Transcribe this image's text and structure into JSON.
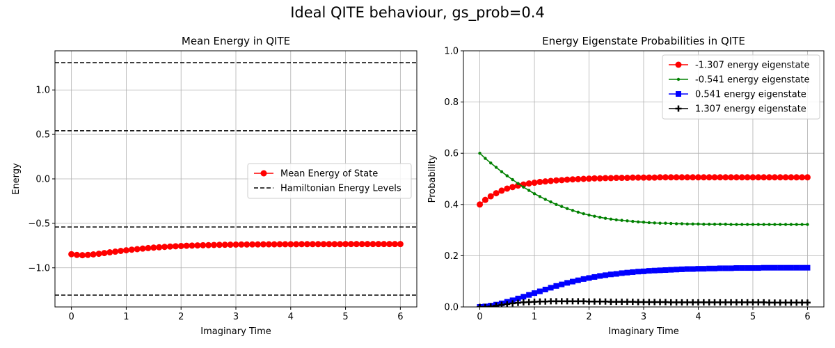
{
  "figure": {
    "suptitle": "Ideal QITE behaviour, gs_prob=0.4"
  },
  "chart_data": [
    {
      "type": "line",
      "title": "Mean Energy in QITE",
      "xlabel": "Imaginary Time",
      "ylabel": "Energy",
      "xlim": [
        -0.3,
        6.3
      ],
      "ylim": [
        -1.44,
        1.44
      ],
      "xticks": [
        0,
        1,
        2,
        3,
        4,
        5,
        6
      ],
      "xtick_labels": [
        "0",
        "1",
        "2",
        "3",
        "4",
        "5",
        "6"
      ],
      "yticks": [
        -1.0,
        -0.5,
        0.0,
        0.5,
        1.0
      ],
      "ytick_labels": [
        "−1.0",
        "−0.5",
        "0.0",
        "0.5",
        "1.0"
      ],
      "grid": true,
      "legend_position": "center-right",
      "legend": [
        "Mean Energy of State",
        "Hamiltonian Energy Levels"
      ],
      "series": [
        {
          "name": "Mean Energy of State",
          "color": "#ff0000",
          "marker": "circle",
          "x": [
            0.0,
            0.1,
            0.2,
            0.3,
            0.4,
            0.5,
            0.6,
            0.7,
            0.8,
            0.9,
            1.0,
            1.1,
            1.2,
            1.3,
            1.4,
            1.5,
            1.6,
            1.7,
            1.8,
            1.9,
            2.0,
            2.1,
            2.2,
            2.3,
            2.4,
            2.5,
            2.6,
            2.7,
            2.8,
            2.9,
            3.0,
            3.1,
            3.2,
            3.3,
            3.4,
            3.5,
            3.6,
            3.7,
            3.8,
            3.9,
            4.0,
            4.1,
            4.2,
            4.3,
            4.4,
            4.5,
            4.6,
            4.7,
            4.8,
            4.9,
            5.0,
            5.1,
            5.2,
            5.3,
            5.4,
            5.5,
            5.6,
            5.7,
            5.8,
            5.9,
            6.0
          ],
          "y": [
            -0.847,
            -0.855,
            -0.858,
            -0.855,
            -0.849,
            -0.842,
            -0.834,
            -0.826,
            -0.818,
            -0.81,
            -0.803,
            -0.796,
            -0.79,
            -0.784,
            -0.778,
            -0.773,
            -0.769,
            -0.765,
            -0.761,
            -0.758,
            -0.755,
            -0.752,
            -0.75,
            -0.748,
            -0.746,
            -0.745,
            -0.743,
            -0.742,
            -0.741,
            -0.74,
            -0.739,
            -0.738,
            -0.738,
            -0.737,
            -0.737,
            -0.736,
            -0.736,
            -0.736,
            -0.735,
            -0.735,
            -0.735,
            -0.735,
            -0.734,
            -0.734,
            -0.734,
            -0.734,
            -0.734,
            -0.734,
            -0.734,
            -0.734,
            -0.733,
            -0.733,
            -0.733,
            -0.733,
            -0.733,
            -0.733,
            -0.733,
            -0.733,
            -0.733,
            -0.733,
            -0.733
          ]
        }
      ],
      "hlines": {
        "name": "Hamiltonian Energy Levels",
        "color": "#000000",
        "style": "dashed",
        "values": [
          -1.307,
          -0.541,
          0.541,
          1.307
        ]
      }
    },
    {
      "type": "line",
      "title": "Energy Eigenstate Probabilities in QITE",
      "xlabel": "Imaginary Time",
      "ylabel": "Probability",
      "xlim": [
        -0.3,
        6.3
      ],
      "ylim": [
        0.0,
        1.0
      ],
      "xticks": [
        0,
        1,
        2,
        3,
        4,
        5,
        6
      ],
      "xtick_labels": [
        "0",
        "1",
        "2",
        "3",
        "4",
        "5",
        "6"
      ],
      "yticks": [
        0.0,
        0.2,
        0.4,
        0.6,
        0.8,
        1.0
      ],
      "ytick_labels": [
        "0.0",
        "0.2",
        "0.4",
        "0.6",
        "0.8",
        "1.0"
      ],
      "grid": true,
      "legend_position": "top-right",
      "legend": [
        "-1.307 energy eigenstate",
        "-0.541 energy eigenstate",
        "0.541 energy eigenstate",
        "1.307 energy eigenstate"
      ],
      "x": [
        0.0,
        0.1,
        0.2,
        0.3,
        0.4,
        0.5,
        0.6,
        0.7,
        0.8,
        0.9,
        1.0,
        1.1,
        1.2,
        1.3,
        1.4,
        1.5,
        1.6,
        1.7,
        1.8,
        1.9,
        2.0,
        2.1,
        2.2,
        2.3,
        2.4,
        2.5,
        2.6,
        2.7,
        2.8,
        2.9,
        3.0,
        3.1,
        3.2,
        3.3,
        3.4,
        3.5,
        3.6,
        3.7,
        3.8,
        3.9,
        4.0,
        4.1,
        4.2,
        4.3,
        4.4,
        4.5,
        4.6,
        4.7,
        4.8,
        4.9,
        5.0,
        5.1,
        5.2,
        5.3,
        5.4,
        5.5,
        5.6,
        5.7,
        5.8,
        5.9,
        6.0
      ],
      "series": [
        {
          "name": "-1.307 energy eigenstate",
          "color": "#ff0000",
          "marker": "circle",
          "values": [
            0.4,
            0.418,
            0.432,
            0.444,
            0.454,
            0.462,
            0.468,
            0.474,
            0.478,
            0.482,
            0.485,
            0.488,
            0.49,
            0.492,
            0.494,
            0.495,
            0.497,
            0.498,
            0.499,
            0.5,
            0.501,
            0.502,
            0.502,
            0.503,
            0.503,
            0.504,
            0.504,
            0.504,
            0.505,
            0.505,
            0.505,
            0.505,
            0.505,
            0.506,
            0.506,
            0.506,
            0.506,
            0.506,
            0.506,
            0.506,
            0.506,
            0.506,
            0.506,
            0.506,
            0.506,
            0.506,
            0.506,
            0.506,
            0.506,
            0.506,
            0.506,
            0.506,
            0.506,
            0.506,
            0.506,
            0.506,
            0.506,
            0.506,
            0.506,
            0.506,
            0.506
          ]
        },
        {
          "name": "-0.541 energy eigenstate",
          "color": "#008000",
          "marker": "dot",
          "values": [
            0.6,
            0.58,
            0.562,
            0.545,
            0.528,
            0.512,
            0.497,
            0.482,
            0.468,
            0.455,
            0.442,
            0.431,
            0.42,
            0.41,
            0.4,
            0.392,
            0.384,
            0.377,
            0.37,
            0.364,
            0.359,
            0.354,
            0.35,
            0.346,
            0.343,
            0.34,
            0.338,
            0.336,
            0.334,
            0.332,
            0.331,
            0.329,
            0.328,
            0.327,
            0.327,
            0.326,
            0.325,
            0.325,
            0.324,
            0.324,
            0.324,
            0.323,
            0.323,
            0.323,
            0.323,
            0.323,
            0.322,
            0.322,
            0.322,
            0.322,
            0.322,
            0.322,
            0.322,
            0.322,
            0.322,
            0.322,
            0.322,
            0.322,
            0.322,
            0.322,
            0.322
          ]
        },
        {
          "name": "0.541 energy eigenstate",
          "color": "#0000ff",
          "marker": "square",
          "values": [
            0.0,
            0.002,
            0.005,
            0.009,
            0.014,
            0.02,
            0.026,
            0.033,
            0.04,
            0.047,
            0.054,
            0.061,
            0.068,
            0.075,
            0.082,
            0.088,
            0.094,
            0.099,
            0.104,
            0.109,
            0.113,
            0.117,
            0.121,
            0.124,
            0.127,
            0.129,
            0.132,
            0.134,
            0.136,
            0.138,
            0.139,
            0.141,
            0.142,
            0.143,
            0.144,
            0.145,
            0.146,
            0.147,
            0.148,
            0.148,
            0.149,
            0.149,
            0.15,
            0.15,
            0.151,
            0.151,
            0.151,
            0.152,
            0.152,
            0.152,
            0.152,
            0.152,
            0.153,
            0.153,
            0.153,
            0.153,
            0.153,
            0.153,
            0.153,
            0.153,
            0.153
          ]
        },
        {
          "name": "1.307 energy eigenstate",
          "color": "#000000",
          "marker": "plus",
          "values": [
            0.0,
            0.0,
            0.002,
            0.005,
            0.008,
            0.011,
            0.014,
            0.016,
            0.018,
            0.019,
            0.02,
            0.021,
            0.021,
            0.022,
            0.022,
            0.022,
            0.022,
            0.022,
            0.022,
            0.022,
            0.021,
            0.021,
            0.021,
            0.021,
            0.02,
            0.02,
            0.02,
            0.02,
            0.02,
            0.019,
            0.019,
            0.019,
            0.019,
            0.019,
            0.019,
            0.018,
            0.018,
            0.018,
            0.018,
            0.018,
            0.018,
            0.018,
            0.018,
            0.018,
            0.018,
            0.018,
            0.018,
            0.018,
            0.018,
            0.018,
            0.018,
            0.018,
            0.018,
            0.017,
            0.017,
            0.017,
            0.017,
            0.017,
            0.017,
            0.017,
            0.017
          ]
        }
      ]
    }
  ]
}
